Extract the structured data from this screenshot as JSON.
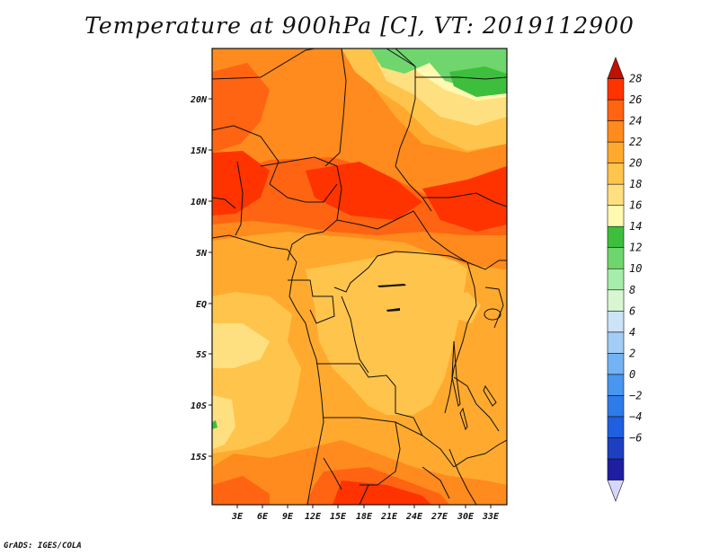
{
  "title": "Temperature at 900hPa [C], VT: 2019112900",
  "footer": "GrADS: IGES/COLA",
  "map": {
    "lat_labels": [
      "20N",
      "15N",
      "10N",
      "5N",
      "EQ",
      "5S",
      "10S",
      "15S"
    ],
    "lon_labels": [
      "3E",
      "6E",
      "9E",
      "12E",
      "15E",
      "18E",
      "21E",
      "24E",
      "27E",
      "30E",
      "33E"
    ]
  },
  "colorbar": {
    "levels": [
      "28",
      "26",
      "24",
      "22",
      "20",
      "18",
      "16",
      "14",
      "12",
      "10",
      "8",
      "6",
      "4",
      "2",
      "0",
      "−2",
      "−4",
      "−6"
    ],
    "colors": [
      "#d6d6ff",
      "#1e1ea0",
      "#1d3fc2",
      "#1f5fe0",
      "#2e7bea",
      "#4896ef",
      "#74b3f3",
      "#a3ccf6",
      "#cde3f6",
      "#d9f6d2",
      "#a6ecab",
      "#6fd66d",
      "#3dbf3d",
      "#fff9b2",
      "#ffe080",
      "#ffc44c",
      "#ffaa2e",
      "#ff8a1d",
      "#ff6412",
      "#ff3300",
      "#c11000"
    ]
  }
}
